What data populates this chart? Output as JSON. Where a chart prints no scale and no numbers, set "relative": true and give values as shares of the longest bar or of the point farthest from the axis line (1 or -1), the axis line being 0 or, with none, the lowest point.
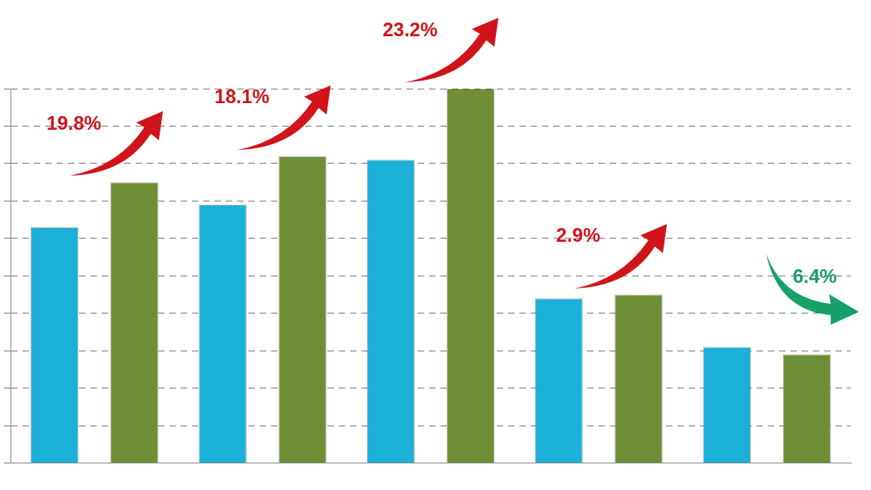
{
  "chart_data": {
    "type": "bar",
    "relative": true,
    "categories": [
      null,
      null,
      null,
      null,
      null
    ],
    "grid": "y",
    "legend": false,
    "series": [
      {
        "color": "#1ab0d8",
        "values": [
          0.63,
          0.69,
          0.81,
          0.44,
          0.31
        ]
      },
      {
        "color": "#6e8f35",
        "values": [
          0.75,
          0.82,
          1,
          0.45,
          0.29
        ]
      }
    ],
    "annotations": [
      "19.8%",
      "18.1%",
      "23.2%",
      "2.9%",
      "6.4%"
    ]
  }
}
